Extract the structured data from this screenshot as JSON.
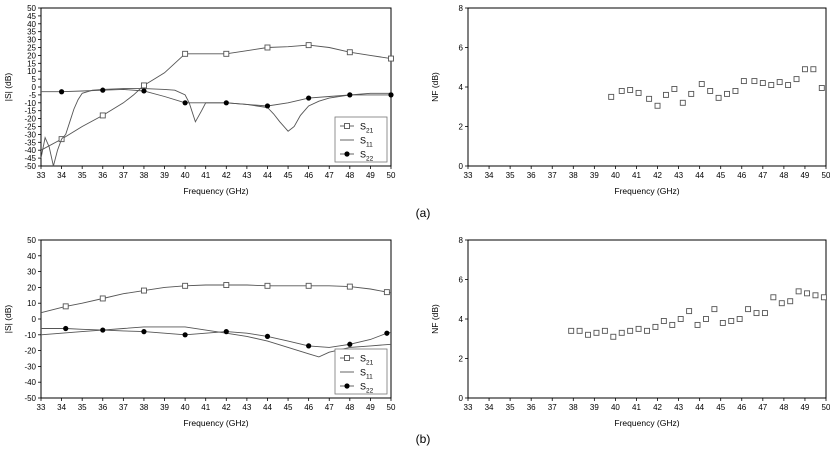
{
  "figure": {
    "panel_labels": [
      "(a)",
      "(b)"
    ]
  },
  "chart_data": [
    {
      "id": "a-s",
      "type": "line",
      "panel": "(a)",
      "xlabel": "Frequency (GHz)",
      "ylabel": "|S| (dB)",
      "xlim": [
        33,
        50
      ],
      "ylim": [
        -50,
        50
      ],
      "xticks": [
        33,
        34,
        35,
        36,
        37,
        38,
        39,
        40,
        41,
        42,
        43,
        44,
        45,
        46,
        47,
        48,
        49,
        50
      ],
      "yticks": [
        -50,
        -45,
        -40,
        -35,
        -30,
        -25,
        -20,
        -15,
        -10,
        -5,
        0,
        5,
        10,
        15,
        20,
        25,
        30,
        35,
        40,
        45,
        50
      ],
      "legend": {
        "position": "bottom-right",
        "entries": [
          {
            "name": "S",
            "sub": "21",
            "marker": "square"
          },
          {
            "name": "S",
            "sub": "11",
            "marker": "none"
          },
          {
            "name": "S",
            "sub": "22",
            "marker": "dot"
          }
        ]
      },
      "series": [
        {
          "name": "S21",
          "marker": "square",
          "marker_x": [
            34,
            36,
            38,
            40,
            42,
            44,
            46,
            48,
            50
          ],
          "x": [
            33,
            34,
            35,
            36,
            37,
            37.5,
            38,
            38.5,
            39,
            39.5,
            40,
            41,
            42,
            43,
            44,
            45,
            46,
            47,
            48,
            48.5,
            49,
            49.5,
            50
          ],
          "y": [
            -40,
            -33,
            -25,
            -18,
            -10,
            -5,
            1,
            5,
            9,
            15,
            21,
            21,
            21,
            23,
            25,
            25.5,
            26.5,
            25,
            22,
            21,
            20,
            19,
            18
          ]
        },
        {
          "name": "S11",
          "marker": "none",
          "x": [
            33,
            33.2,
            33.4,
            33.6,
            33.8,
            34,
            34.2,
            34.4,
            34.6,
            34.8,
            35,
            35.5,
            36,
            37,
            38,
            39,
            39.5,
            40,
            40.2,
            40.5,
            40.8,
            41,
            42,
            43,
            43.5,
            44,
            44.3,
            44.6,
            45,
            45.3,
            45.6,
            46,
            46.5,
            47,
            48,
            49,
            50
          ],
          "y": [
            -45,
            -32,
            -38,
            -50,
            -40,
            -33,
            -30,
            -22,
            -14,
            -8,
            -4,
            -2,
            -1.5,
            -1,
            -1,
            -1.5,
            -2,
            -5,
            -10,
            -22,
            -15,
            -10,
            -10,
            -11,
            -12,
            -13,
            -17,
            -22,
            -28,
            -25,
            -18,
            -12,
            -9,
            -7,
            -5,
            -4,
            -4
          ]
        },
        {
          "name": "S22",
          "marker": "dot",
          "marker_x": [
            34,
            36,
            38,
            40,
            42,
            44,
            46,
            48,
            50
          ],
          "x": [
            33,
            34,
            35,
            36,
            37,
            38,
            39,
            40,
            41,
            42,
            43,
            44,
            45,
            46,
            47,
            48,
            49,
            50
          ],
          "y": [
            -3,
            -3,
            -2.5,
            -2,
            -1.5,
            -2.5,
            -6,
            -10,
            -10,
            -10,
            -11,
            -12,
            -10,
            -7,
            -6,
            -5,
            -5,
            -5
          ]
        }
      ]
    },
    {
      "id": "a-nf",
      "type": "scatter",
      "panel": "(a)",
      "xlabel": "Frequency (GHz)",
      "ylabel": "NF (dB)",
      "xlim": [
        33,
        50
      ],
      "ylim": [
        0,
        8
      ],
      "xticks": [
        33,
        34,
        35,
        36,
        37,
        38,
        39,
        40,
        41,
        42,
        43,
        44,
        45,
        46,
        47,
        48,
        49,
        50
      ],
      "yticks": [
        0,
        2,
        4,
        6,
        8
      ],
      "series": [
        {
          "name": "NF",
          "marker": "square",
          "x": [
            39.8,
            40.3,
            40.7,
            41.1,
            41.6,
            42.0,
            42.4,
            42.8,
            43.2,
            43.6,
            44.1,
            44.5,
            44.9,
            45.3,
            45.7,
            46.1,
            46.6,
            47.0,
            47.4,
            47.8,
            48.2,
            48.6,
            49.0,
            49.4,
            49.8
          ],
          "y": [
            3.5,
            3.8,
            3.85,
            3.7,
            3.4,
            3.05,
            3.6,
            3.9,
            3.2,
            3.65,
            4.15,
            3.8,
            3.45,
            3.65,
            3.8,
            4.3,
            4.3,
            4.2,
            4.1,
            4.25,
            4.1,
            4.4,
            4.9,
            4.9,
            3.95
          ]
        }
      ]
    },
    {
      "id": "b-s",
      "type": "line",
      "panel": "(b)",
      "xlabel": "Frequency (GHz)",
      "ylabel": "|S| (dB)",
      "xlim": [
        33,
        50
      ],
      "ylim": [
        -50,
        50
      ],
      "xticks": [
        33,
        34,
        35,
        36,
        37,
        38,
        39,
        40,
        41,
        42,
        43,
        44,
        45,
        46,
        47,
        48,
        49,
        50
      ],
      "yticks": [
        -50,
        -40,
        -30,
        -20,
        -10,
        0,
        10,
        20,
        30,
        40,
        50
      ],
      "legend": {
        "position": "bottom-right",
        "entries": [
          {
            "name": "S",
            "sub": "21",
            "marker": "square"
          },
          {
            "name": "S",
            "sub": "11",
            "marker": "none"
          },
          {
            "name": "S",
            "sub": "22",
            "marker": "dot"
          }
        ]
      },
      "series": [
        {
          "name": "S21",
          "marker": "square",
          "marker_x": [
            34.2,
            36,
            38,
            40,
            42,
            44,
            46,
            48,
            49.8
          ],
          "x": [
            33,
            34.2,
            35,
            36,
            37,
            38,
            39,
            40,
            41,
            42,
            43,
            44,
            45,
            46,
            47,
            48,
            49,
            49.8,
            50
          ],
          "y": [
            4,
            8,
            10,
            13,
            16,
            18,
            20,
            21,
            21.5,
            21.5,
            21.5,
            21,
            21,
            21,
            21,
            20.5,
            19,
            17,
            16.5
          ]
        },
        {
          "name": "S11",
          "marker": "none",
          "x": [
            33,
            34,
            35,
            36,
            37,
            38,
            39,
            40,
            41,
            42,
            43,
            44,
            45,
            46,
            46.5,
            47,
            48,
            49,
            50
          ],
          "y": [
            -10,
            -9,
            -8,
            -7,
            -6,
            -5,
            -5,
            -5,
            -7,
            -9,
            -11,
            -14,
            -18,
            -22,
            -24,
            -21,
            -18,
            -17,
            -16
          ]
        },
        {
          "name": "S22",
          "marker": "dot",
          "marker_x": [
            34.2,
            36,
            38,
            40,
            42,
            44,
            46,
            48,
            49.8
          ],
          "x": [
            33,
            34.2,
            35,
            36,
            37,
            38,
            39,
            40,
            41,
            42,
            43,
            44,
            45,
            46,
            47,
            48,
            49,
            49.8,
            50
          ],
          "y": [
            -6,
            -6,
            -6.5,
            -7,
            -7.5,
            -8,
            -9,
            -10,
            -9,
            -8,
            -9,
            -11,
            -14,
            -17,
            -18,
            -16,
            -13,
            -9,
            -8.5
          ]
        }
      ]
    },
    {
      "id": "b-nf",
      "type": "scatter",
      "panel": "(b)",
      "xlabel": "Frequency (GHz)",
      "ylabel": "NF (dB)",
      "xlim": [
        33,
        50
      ],
      "ylim": [
        0,
        8
      ],
      "xticks": [
        33,
        34,
        35,
        36,
        37,
        38,
        39,
        40,
        41,
        42,
        43,
        44,
        45,
        46,
        47,
        48,
        49,
        50
      ],
      "yticks": [
        0,
        2,
        4,
        6,
        8
      ],
      "series": [
        {
          "name": "NF",
          "marker": "square",
          "x": [
            37.9,
            38.3,
            38.7,
            39.1,
            39.5,
            39.9,
            40.3,
            40.7,
            41.1,
            41.5,
            41.9,
            42.3,
            42.7,
            43.1,
            43.5,
            43.9,
            44.3,
            44.7,
            45.1,
            45.5,
            45.9,
            46.3,
            46.7,
            47.1,
            47.5,
            47.9,
            48.3,
            48.7,
            49.1,
            49.5,
            49.9
          ],
          "y": [
            3.4,
            3.4,
            3.2,
            3.3,
            3.4,
            3.1,
            3.3,
            3.4,
            3.5,
            3.4,
            3.6,
            3.9,
            3.7,
            4.0,
            4.4,
            3.7,
            4.0,
            4.5,
            3.8,
            3.9,
            4.0,
            4.5,
            4.3,
            4.3,
            5.1,
            4.8,
            4.9,
            5.4,
            5.3,
            5.2,
            5.1
          ]
        }
      ]
    }
  ]
}
